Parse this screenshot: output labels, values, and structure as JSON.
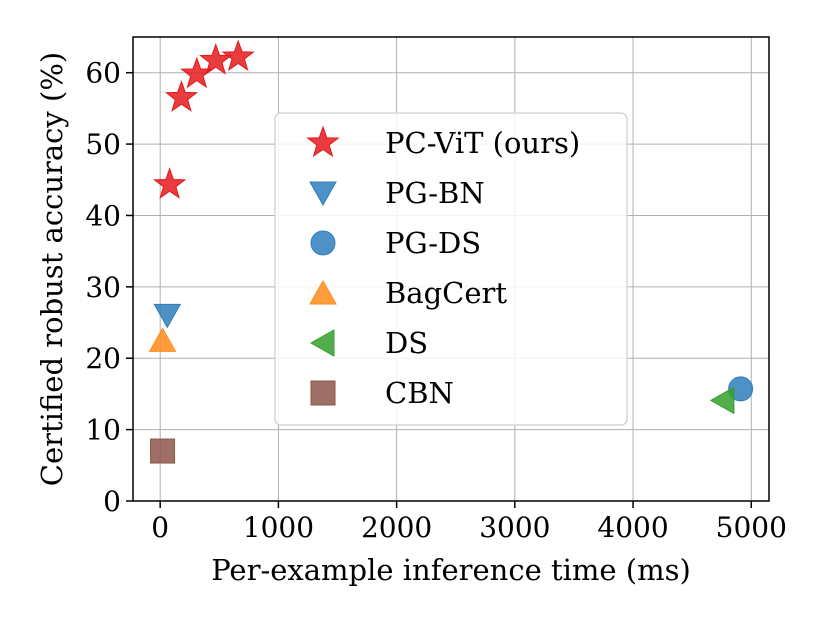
{
  "chart_data": {
    "type": "scatter",
    "title": "",
    "xlabel": "Per-example inference time (ms)",
    "ylabel": "Certified robust accuracy (%)",
    "xlim": [
      -230,
      5150
    ],
    "ylim": [
      0,
      65
    ],
    "xticks": [
      0,
      1000,
      2000,
      3000,
      4000,
      5000
    ],
    "yticks": [
      0,
      10,
      20,
      30,
      40,
      50,
      60
    ],
    "grid": true,
    "legend_position": "center",
    "series": [
      {
        "name": "PC-ViT (ours)",
        "marker": "star",
        "color": "#e41a1c",
        "points": [
          {
            "x": 80,
            "y": 44.3
          },
          {
            "x": 180,
            "y": 56.5
          },
          {
            "x": 310,
            "y": 59.8
          },
          {
            "x": 470,
            "y": 61.7
          },
          {
            "x": 660,
            "y": 62.2
          }
        ]
      },
      {
        "name": "PG-BN",
        "marker": "triangle-down",
        "color": "#2f7ebc",
        "points": [
          {
            "x": 60,
            "y": 26.0
          }
        ]
      },
      {
        "name": "PG-DS",
        "marker": "circle",
        "color": "#2f7ebc",
        "points": [
          {
            "x": 4910,
            "y": 15.7
          }
        ]
      },
      {
        "name": "BagCert",
        "marker": "triangle-up",
        "color": "#ff8c1a",
        "points": [
          {
            "x": 20,
            "y": 22.5
          }
        ]
      },
      {
        "name": "DS",
        "marker": "triangle-left",
        "color": "#33a02c",
        "points": [
          {
            "x": 4760,
            "y": 14.1
          }
        ]
      },
      {
        "name": "CBN",
        "marker": "square",
        "color": "#8c564b",
        "points": [
          {
            "x": 20,
            "y": 7.0
          }
        ]
      }
    ]
  }
}
